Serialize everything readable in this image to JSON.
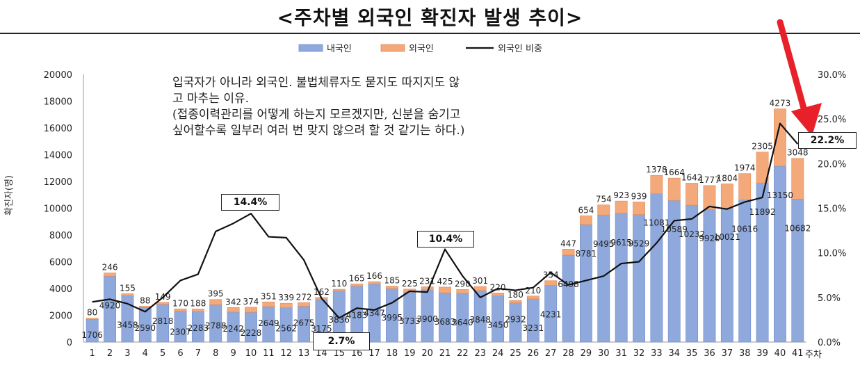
{
  "page": {
    "title": "<주차별 외국인 확진자 발생 추이>",
    "note_lines": [
      "입국자가 아니라 외국인. 불법체류자도 묻지도 따지지도 않",
      "고 마추는 이유.",
      "(접종이력관리를 어떻게 하는지 모르겠지만, 신분을 숨기고",
      "싶어할수록 일부러 여러 번 맞지 않으려 할 것 같기는 하다.)"
    ],
    "callouts": {
      "peak_w10": "14.4%",
      "low_w14": "2.7%",
      "peak_w21": "10.4%",
      "latest_w40": "22.2%"
    }
  },
  "chart_data": {
    "type": "bar",
    "title": "<주차별 외국인 확진자 발생 추이>",
    "xlabel": "주차",
    "ylabel": "확진자(명)",
    "y2label": "",
    "ylim": [
      0,
      20000
    ],
    "yticks": [
      0,
      2000,
      4000,
      6000,
      8000,
      10000,
      12000,
      14000,
      16000,
      18000,
      20000
    ],
    "y2lim": [
      0,
      30
    ],
    "y2ticks": [
      "0.0%",
      "5.0%",
      "10.0%",
      "15.0%",
      "20.0%",
      "25.0%",
      "30.0%"
    ],
    "stacked": true,
    "legend_position": "top-center",
    "grid": false,
    "categories": [
      "1",
      "2",
      "3",
      "4",
      "5",
      "6",
      "7",
      "8",
      "9",
      "10",
      "11",
      "12",
      "13",
      "14",
      "15",
      "16",
      "17",
      "18",
      "19",
      "20",
      "21",
      "22",
      "23",
      "24",
      "25",
      "26",
      "27",
      "28",
      "29",
      "30",
      "31",
      "32",
      "33",
      "34",
      "35",
      "36",
      "37",
      "38",
      "39",
      "40",
      "41"
    ],
    "series": [
      {
        "name": "내국인",
        "color": "#8fa9dc",
        "values": [
          1706,
          4920,
          3458,
          2590,
          2818,
          2307,
          2283,
          2788,
          2242,
          2228,
          2649,
          2562,
          2675,
          3175,
          3836,
          4183,
          4347,
          3995,
          3733,
          3900,
          3683,
          3640,
          3848,
          3450,
          2932,
          3231,
          4231,
          6498,
          8781,
          9495,
          9615,
          9529,
          11081,
          10589,
          10232,
          9920,
          10021,
          10616,
          11892,
          13150,
          10682
        ],
        "labels": [
          "1706",
          "4920",
          "3458",
          "2590",
          "2818",
          "2307",
          "2283",
          "2788",
          "2242",
          "2228",
          "2649",
          "2562",
          "2675",
          "3175",
          "3836",
          "4183",
          "4347",
          "3995",
          "3733",
          "3900",
          "3683",
          "3640",
          "3848",
          "3450",
          "2932",
          "3231",
          "4231",
          "6498",
          "8781",
          "9495",
          "9615",
          "9529",
          "11081",
          "10589",
          "10232",
          "9920",
          "10021",
          "10616",
          "11892",
          "13150",
          "10682"
        ]
      },
      {
        "name": "외국인",
        "color": "#f4a97b",
        "values": [
          80,
          246,
          155,
          88,
          149,
          170,
          188,
          395,
          342,
          374,
          351,
          339,
          272,
          162,
          110,
          165,
          166,
          185,
          225,
          231,
          425,
          290,
          301,
          220,
          180,
          210,
          354,
          447,
          654,
          754,
          923,
          939,
          1378,
          1664,
          1642,
          1777,
          1804,
          1974,
          2305,
          4273,
          3048
        ]
      },
      {
        "name": "외국인 비중",
        "type": "line",
        "axis": "right",
        "color": "#111111",
        "values": [
          4.5,
          4.8,
          4.3,
          3.4,
          5.0,
          6.9,
          7.6,
          12.4,
          13.3,
          14.4,
          11.8,
          11.7,
          9.2,
          4.9,
          2.7,
          3.8,
          3.6,
          4.4,
          5.7,
          5.6,
          10.4,
          7.4,
          5.0,
          6.0,
          5.8,
          6.1,
          7.8,
          6.4,
          6.9,
          7.4,
          8.8,
          9.0,
          11.1,
          13.6,
          13.8,
          15.2,
          14.9,
          15.7,
          16.2,
          24.5,
          22.2
        ]
      }
    ]
  }
}
